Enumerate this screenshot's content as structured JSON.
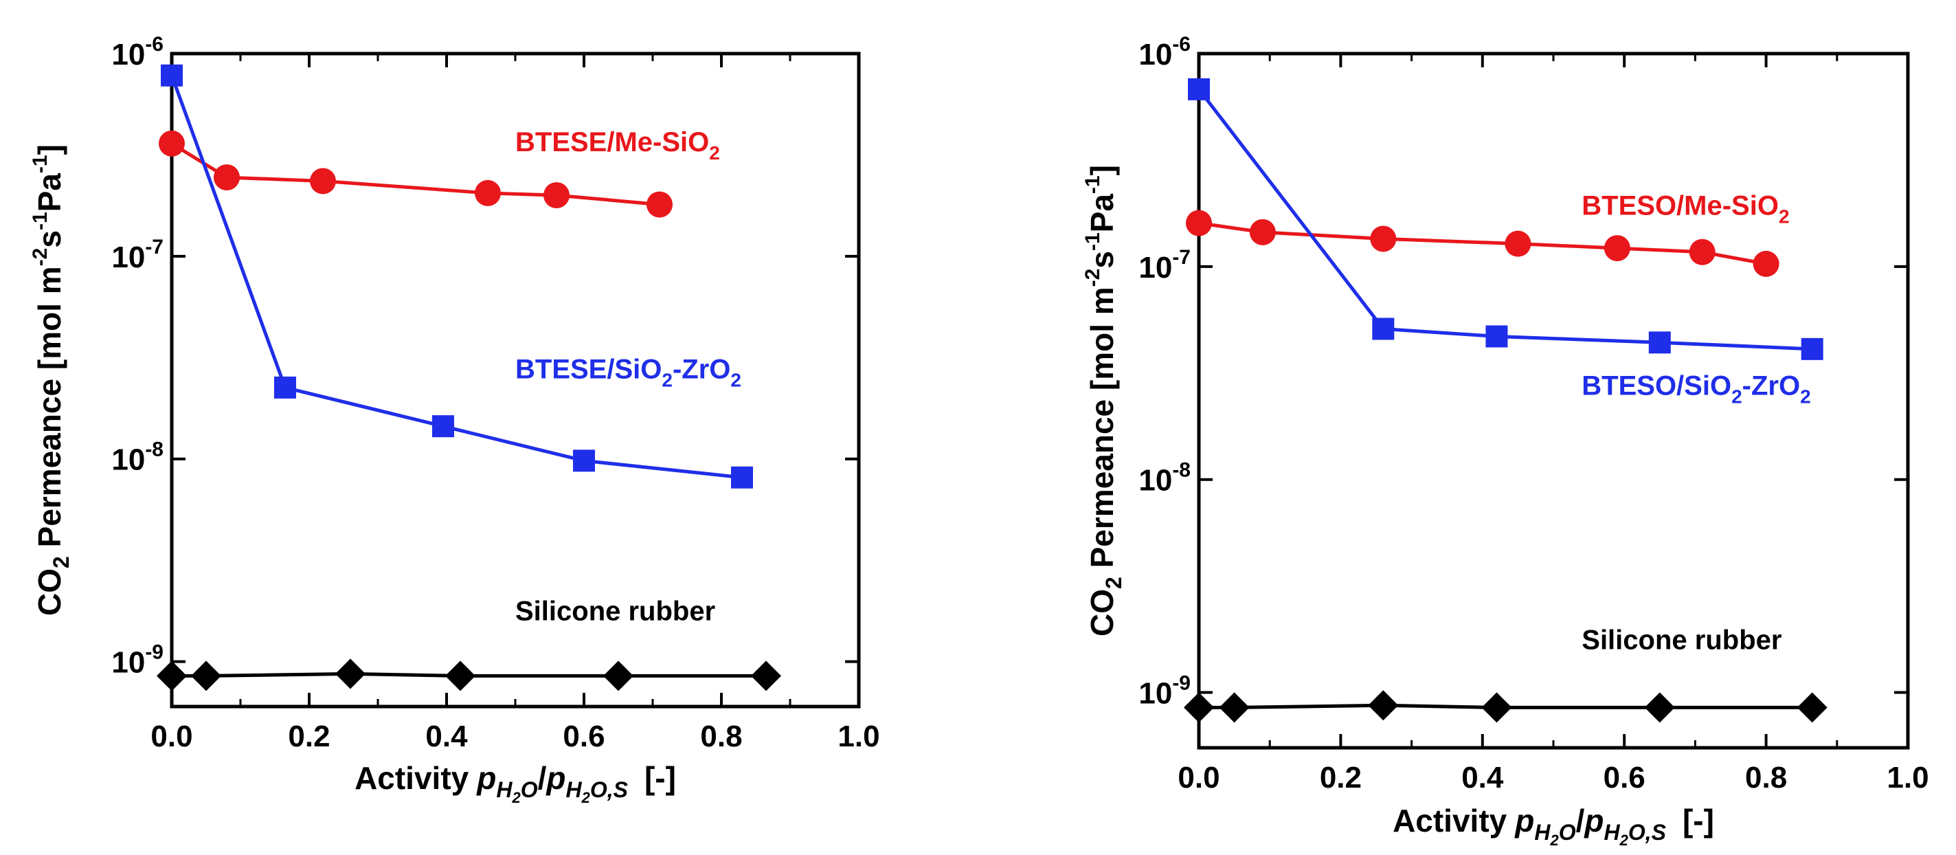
{
  "figure": {
    "chart_data": [
      {
        "type": "line",
        "yscale": "log",
        "title": "",
        "xlabel": "Activity p_H2O/p_H2O,S [-]",
        "ylabel": "CO2 Permeance [mol m-2 s-1 Pa-1]",
        "xlabel_parts": {
          "main": "Activity",
          "p": "p",
          "sub1": "H",
          "sub2": "2",
          "sub3": "O",
          "slash": "/",
          "p2": "p",
          "sub4": "H",
          "sub5": "2",
          "sub6": "O,S",
          "unit": "[-]"
        },
        "ylabel_parts": {
          "co": "CO",
          "two": "2",
          "rest": " Permeance [mol m",
          "e1": "-2",
          "s": "s",
          "e2": "-1",
          "pa": "Pa",
          "e3": "-1",
          "close": "]"
        },
        "xlim": [
          0,
          1.0
        ],
        "ylim": [
          6e-10,
          1e-06
        ],
        "x_ticks": [
          0.0,
          0.2,
          0.4,
          0.6,
          0.8,
          1.0
        ],
        "x_tick_labels": [
          "0.0",
          "0.2",
          "0.4",
          "0.6",
          "0.8",
          "1.0"
        ],
        "y_ticks": [
          1e-09,
          1e-08,
          1e-07,
          1e-06
        ],
        "y_tick_labels": [
          {
            "base": "10",
            "exp": "-9"
          },
          {
            "base": "10",
            "exp": "-8"
          },
          {
            "base": "10",
            "exp": "-7"
          },
          {
            "base": "10",
            "exp": "-6"
          }
        ],
        "series": [
          {
            "name": "BTESE/Me-SiO2",
            "label_parts": {
              "main": "BTESE/Me-SiO",
              "sub": "2",
              "tail": ""
            },
            "label_anchor": {
              "x": 0.5,
              "y": 3.3e-07
            },
            "color": "#e8171b",
            "marker": "circle",
            "x": [
              0.0,
              0.08,
              0.22,
              0.46,
              0.56,
              0.71
            ],
            "y": [
              3.6e-07,
              2.45e-07,
              2.35e-07,
              2.05e-07,
              2e-07,
              1.8e-07
            ]
          },
          {
            "name": "BTESE/SiO2-ZrO2",
            "label_parts": {
              "main": "BTESE/SiO",
              "sub": "2",
              "tail": "-ZrO",
              "sub2": "2"
            },
            "label_anchor": {
              "x": 0.5,
              "y": 2.5e-08
            },
            "color": "#1f2ee8",
            "marker": "square",
            "x": [
              0.0,
              0.165,
              0.395,
              0.6,
              0.83
            ],
            "y": [
              7.8e-07,
              2.25e-08,
              1.45e-08,
              9.8e-09,
              8.1e-09
            ]
          },
          {
            "name": "Silicone rubber",
            "label_parts": {
              "main": "Silicone rubber",
              "sub": "",
              "tail": ""
            },
            "label_anchor": {
              "x": 0.5,
              "y": 1.6e-09
            },
            "color": "#000000",
            "marker": "diamond",
            "x": [
              0.0,
              0.05,
              0.26,
              0.42,
              0.65,
              0.865
            ],
            "y": [
              8.5e-10,
              8.5e-10,
              8.7e-10,
              8.5e-10,
              8.5e-10,
              8.5e-10
            ]
          }
        ]
      },
      {
        "type": "line",
        "yscale": "log",
        "title": "",
        "xlabel": "Activity p_H2O/p_H2O,S [-]",
        "ylabel": "CO2 Permeance [mol m-2 s-1 Pa-1]",
        "xlabel_parts": {
          "main": "Activity",
          "p": "p",
          "sub1": "H",
          "sub2": "2",
          "sub3": "O",
          "slash": "/",
          "p2": "p",
          "sub4": "H",
          "sub5": "2",
          "sub6": "O,S",
          "unit": "[-]"
        },
        "ylabel_parts": {
          "co": "CO",
          "two": "2",
          "rest": " Permeance [mol m",
          "e1": "-2",
          "s": "s",
          "e2": "-1",
          "pa": "Pa",
          "e3": "-1",
          "close": "]"
        },
        "xlim": [
          0,
          1.0
        ],
        "ylim": [
          5.5e-10,
          1e-06
        ],
        "x_ticks": [
          0.0,
          0.2,
          0.4,
          0.6,
          0.8,
          1.0
        ],
        "x_tick_labels": [
          "0.0",
          "0.2",
          "0.4",
          "0.6",
          "0.8",
          "1.0"
        ],
        "y_ticks": [
          1e-09,
          1e-08,
          1e-07,
          1e-06
        ],
        "y_tick_labels": [
          {
            "base": "10",
            "exp": "-9"
          },
          {
            "base": "10",
            "exp": "-8"
          },
          {
            "base": "10",
            "exp": "-7"
          },
          {
            "base": "10",
            "exp": "-6"
          }
        ],
        "series": [
          {
            "name": "BTESO/Me-SiO2",
            "label_parts": {
              "main": "BTESO/Me-SiO",
              "sub": "2",
              "tail": ""
            },
            "label_anchor": {
              "x": 0.54,
              "y": 1.75e-07
            },
            "color": "#e8171b",
            "marker": "circle",
            "x": [
              0.0,
              0.09,
              0.26,
              0.45,
              0.59,
              0.71,
              0.8
            ],
            "y": [
              1.6e-07,
              1.45e-07,
              1.35e-07,
              1.28e-07,
              1.22e-07,
              1.17e-07,
              1.03e-07
            ]
          },
          {
            "name": "BTESO/SiO2-ZrO2",
            "label_parts": {
              "main": "BTESO/SiO",
              "sub": "2",
              "tail": "-ZrO",
              "sub2": "2"
            },
            "label_anchor": {
              "x": 0.54,
              "y": 2.5e-08
            },
            "color": "#1f2ee8",
            "marker": "square",
            "x": [
              0.0,
              0.26,
              0.42,
              0.65,
              0.865
            ],
            "y": [
              6.8e-07,
              5.1e-08,
              4.7e-08,
              4.4e-08,
              4.1e-08
            ]
          },
          {
            "name": "Silicone rubber",
            "label_parts": {
              "main": "Silicone rubber",
              "sub": "",
              "tail": ""
            },
            "label_anchor": {
              "x": 0.54,
              "y": 1.6e-09
            },
            "color": "#000000",
            "marker": "diamond",
            "x": [
              0.0,
              0.05,
              0.26,
              0.42,
              0.65,
              0.865
            ],
            "y": [
              8.5e-10,
              8.5e-10,
              8.7e-10,
              8.5e-10,
              8.5e-10,
              8.5e-10
            ]
          }
        ]
      }
    ]
  }
}
